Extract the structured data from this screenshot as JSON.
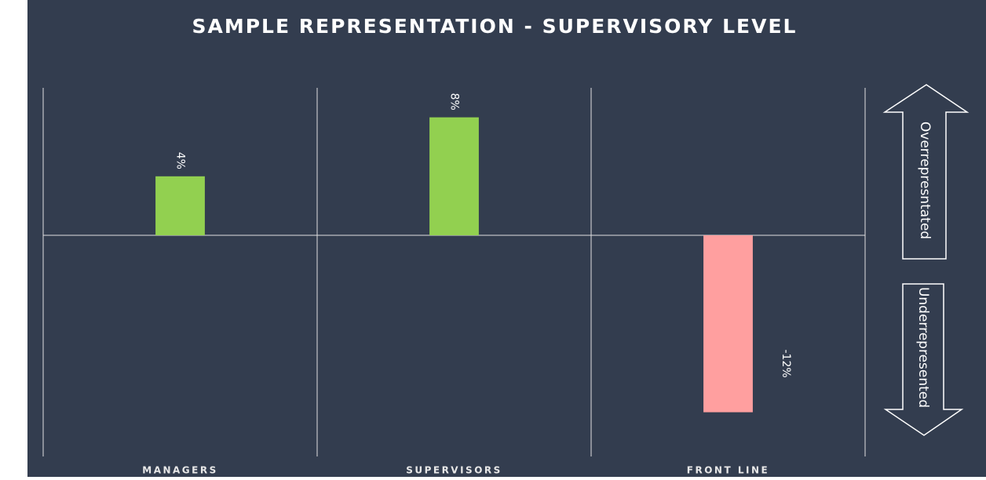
{
  "chart_data": {
    "type": "bar",
    "title": "SAMPLE REPRESENTATION - SUPERVISORY LEVEL",
    "categories": [
      "MANAGERS",
      "SUPERVISORS",
      "FRONT LINE"
    ],
    "values": [
      4,
      8,
      -12
    ],
    "value_labels": [
      "4%",
      "8%",
      "-12%"
    ],
    "positive_color": "#92d050",
    "negative_color": "#ff9f9f",
    "ylim": [
      -15,
      10
    ],
    "annotations": [
      "Overrepresntated",
      "Underrepresented"
    ]
  }
}
